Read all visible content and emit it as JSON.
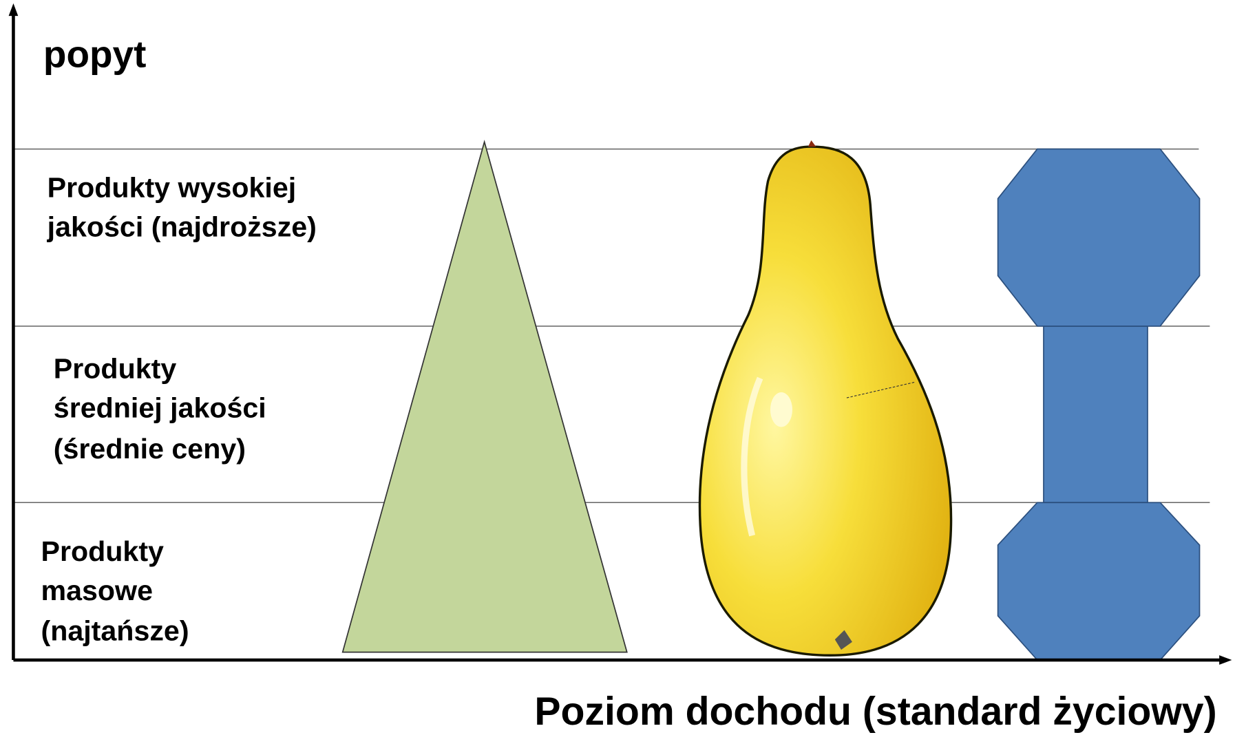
{
  "axes": {
    "y_label": "popyt",
    "x_label": "Poziom dochodu (standard życiowy)"
  },
  "rows": [
    {
      "lines": [
        "Produkty wysokiej",
        "jakości (najdroższe)"
      ]
    },
    {
      "lines": [
        "Produkty",
        "średniej jakości",
        "(średnie ceny)"
      ]
    },
    {
      "lines": [
        "Produkty",
        "masowe",
        "(najtańsze)"
      ]
    }
  ]
}
